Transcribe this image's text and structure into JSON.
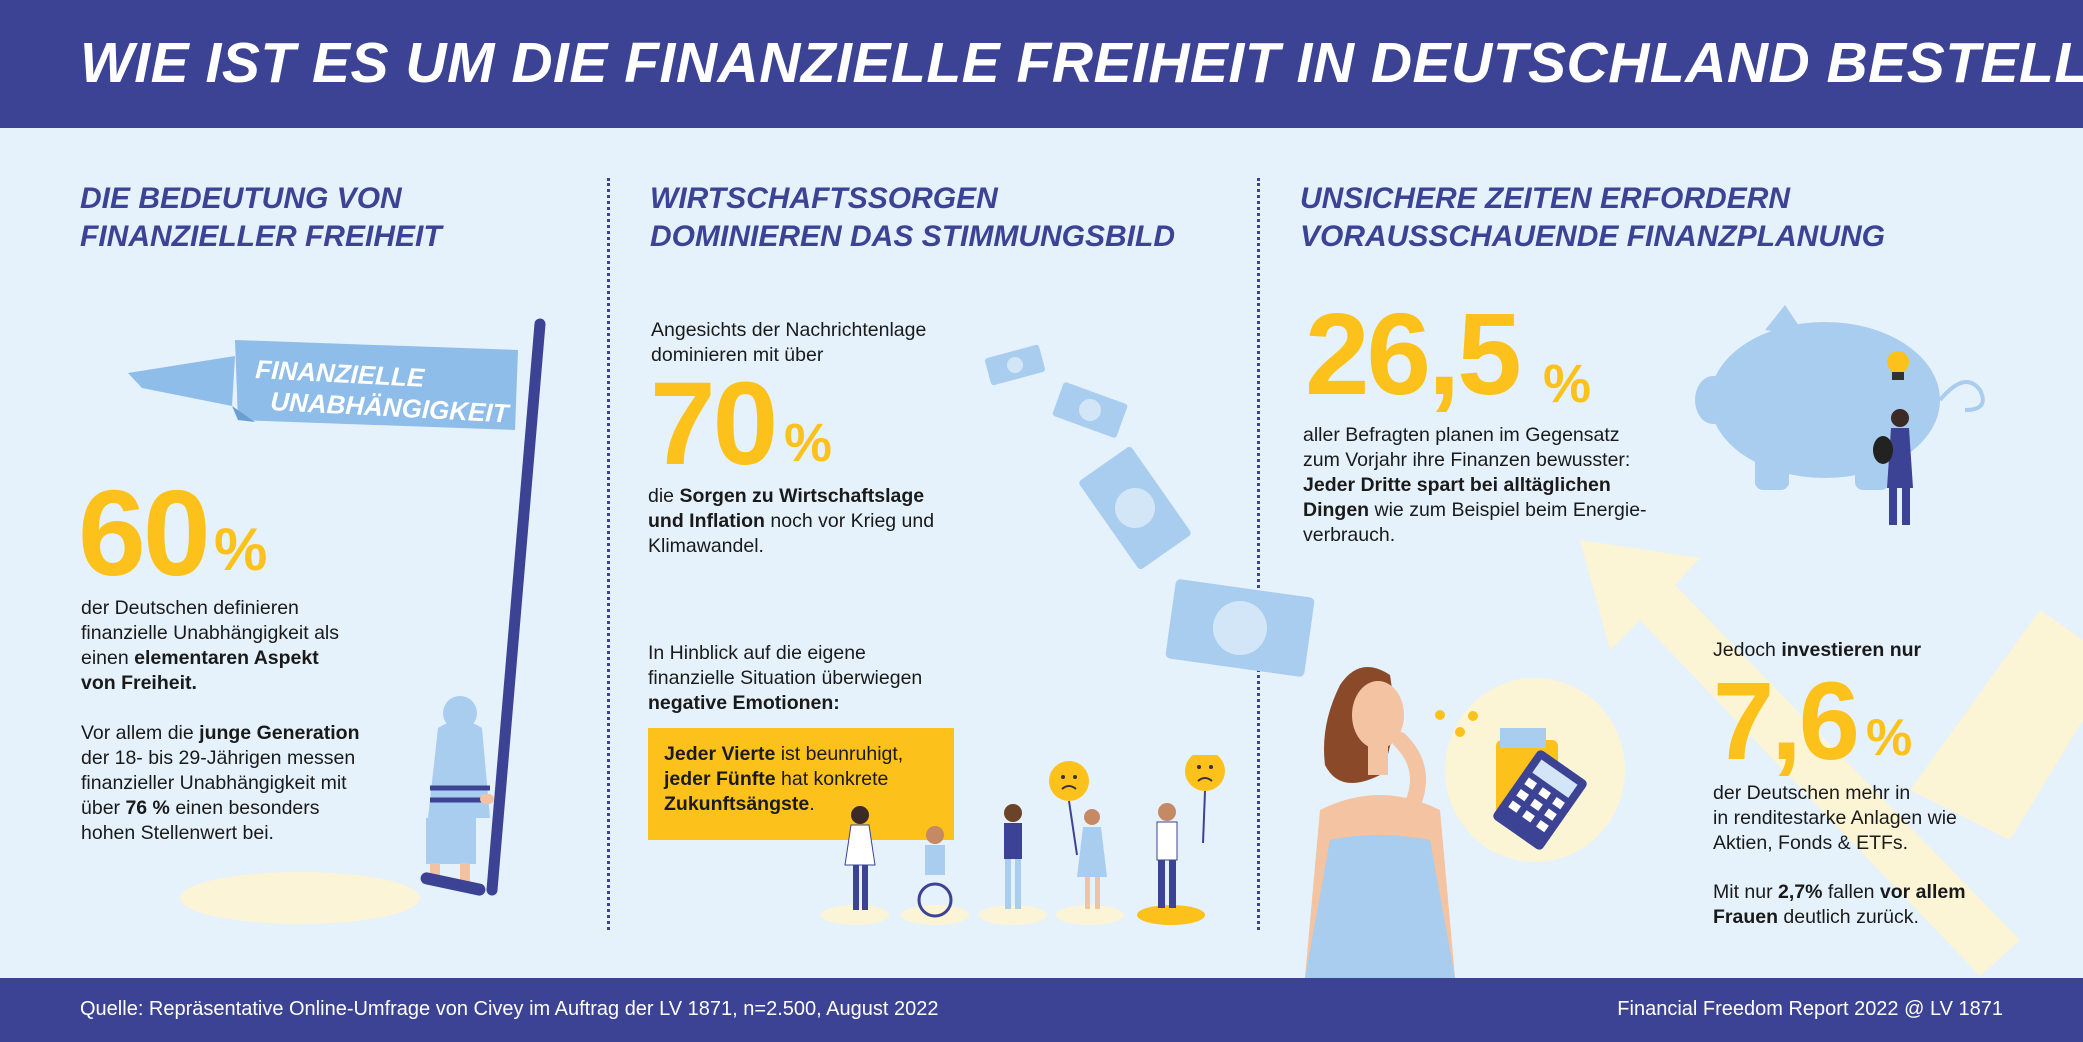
{
  "header": {
    "title": "WIE IST ES UM DIE FINANZIELLE FREIHEIT IN DEUTSCHLAND BESTELLT?"
  },
  "section1": {
    "title_line1": "DIE BEDEUTUNG VON",
    "title_line2": "FINANZIELLER FREIHEIT",
    "flag_line1": "FINANZIELLE",
    "flag_line2": "UNABHÄNGIGKEIT",
    "stat_value": "60",
    "stat_unit": "%",
    "p1_a": "der Deutschen definieren",
    "p1_b": "finanzielle Unabhängigkeit als",
    "p1_c": "einen ",
    "p1_c_bold": "elementaren Aspekt",
    "p1_d_bold": "von Freiheit.",
    "p2_a": "Vor allem die ",
    "p2_a_bold": "junge Generation",
    "p2_b": "der 18- bis 29-Jährigen messen",
    "p2_c": "finanzieller Unabhängigkeit mit",
    "p2_d": "über ",
    "p2_d_bold": "76 %",
    "p2_d_rest": " einen besonders",
    "p2_e": "hohen Stellenwert bei."
  },
  "section2": {
    "title_line1": "WIRTSCHAFTSSORGEN",
    "title_line2": "DOMINIEREN DAS STIMMUNGSBILD",
    "intro_a": "Angesichts der Nachrichtenlage",
    "intro_b": "dominieren mit über",
    "stat_value": "70",
    "stat_unit": "%",
    "p1_a": "die ",
    "p1_a_bold": "Sorgen zu Wirtschaftslage",
    "p1_b_bold": "und Inflation",
    "p1_b": " noch vor Krieg und",
    "p1_c": "Klimawandel.",
    "p2_a": "In Hinblick auf die eigene",
    "p2_b": "finanzielle Situation überwiegen",
    "p2_c_bold": "negative Emotionen:",
    "box_a_bold": "Jeder Vierte",
    "box_a": " ist beunruhigt,",
    "box_b_bold": "jeder Fünfte",
    "box_b": " hat konkrete",
    "box_c_bold": "Zukunftsängste",
    "box_c": "."
  },
  "section3": {
    "title_line1": "UNSICHERE ZEITEN ERFORDERN",
    "title_line2": "VORAUSSCHAUENDE FINANZPLANUNG",
    "stat1_value": "26,5",
    "stat1_unit": "%",
    "p1_a": "aller Befragten planen im Gegensatz",
    "p1_b": "zum Vorjahr ihre Finanzen bewusster:",
    "p1_c_bold": "Jeder Dritte spart bei alltäglichen",
    "p1_d_bold": "Dingen",
    "p1_d": " wie zum Beispiel beim Energie-",
    "p1_e": "verbrauch.",
    "p2_intro": "Jedoch ",
    "p2_intro_bold": "investieren nur",
    "stat2_value": "7,6",
    "stat2_unit": "%",
    "p2_a": "der Deutschen mehr in",
    "p2_b": "in renditestarke Anlagen wie",
    "p2_c": "Aktien, Fonds & ETFs.",
    "p3_a": "Mit nur ",
    "p3_a_bold": "2,7%",
    "p3_a_mid": " fallen ",
    "p3_a_bold2": "vor allem",
    "p3_b_bold": "Frauen",
    "p3_b": " deutlich zurück."
  },
  "footer": {
    "source": "Quelle: Repräsentative Online-Umfrage von Civey im Auftrag der LV 1871, n=2.500, August 2022",
    "report": "Financial Freedom Report 2022 @ LV 1871"
  },
  "colors": {
    "navy": "#3c4394",
    "yellow": "#fcc21b",
    "background": "#e5f1fb",
    "light_blue": "#a9cdef"
  },
  "icons": [
    "flag-illustration",
    "money-bill-icon",
    "piggy-bank-icon",
    "lightbulb-icon",
    "calculator-icon",
    "wallet-icon",
    "sad-face-icon",
    "arrow-up-icon"
  ]
}
